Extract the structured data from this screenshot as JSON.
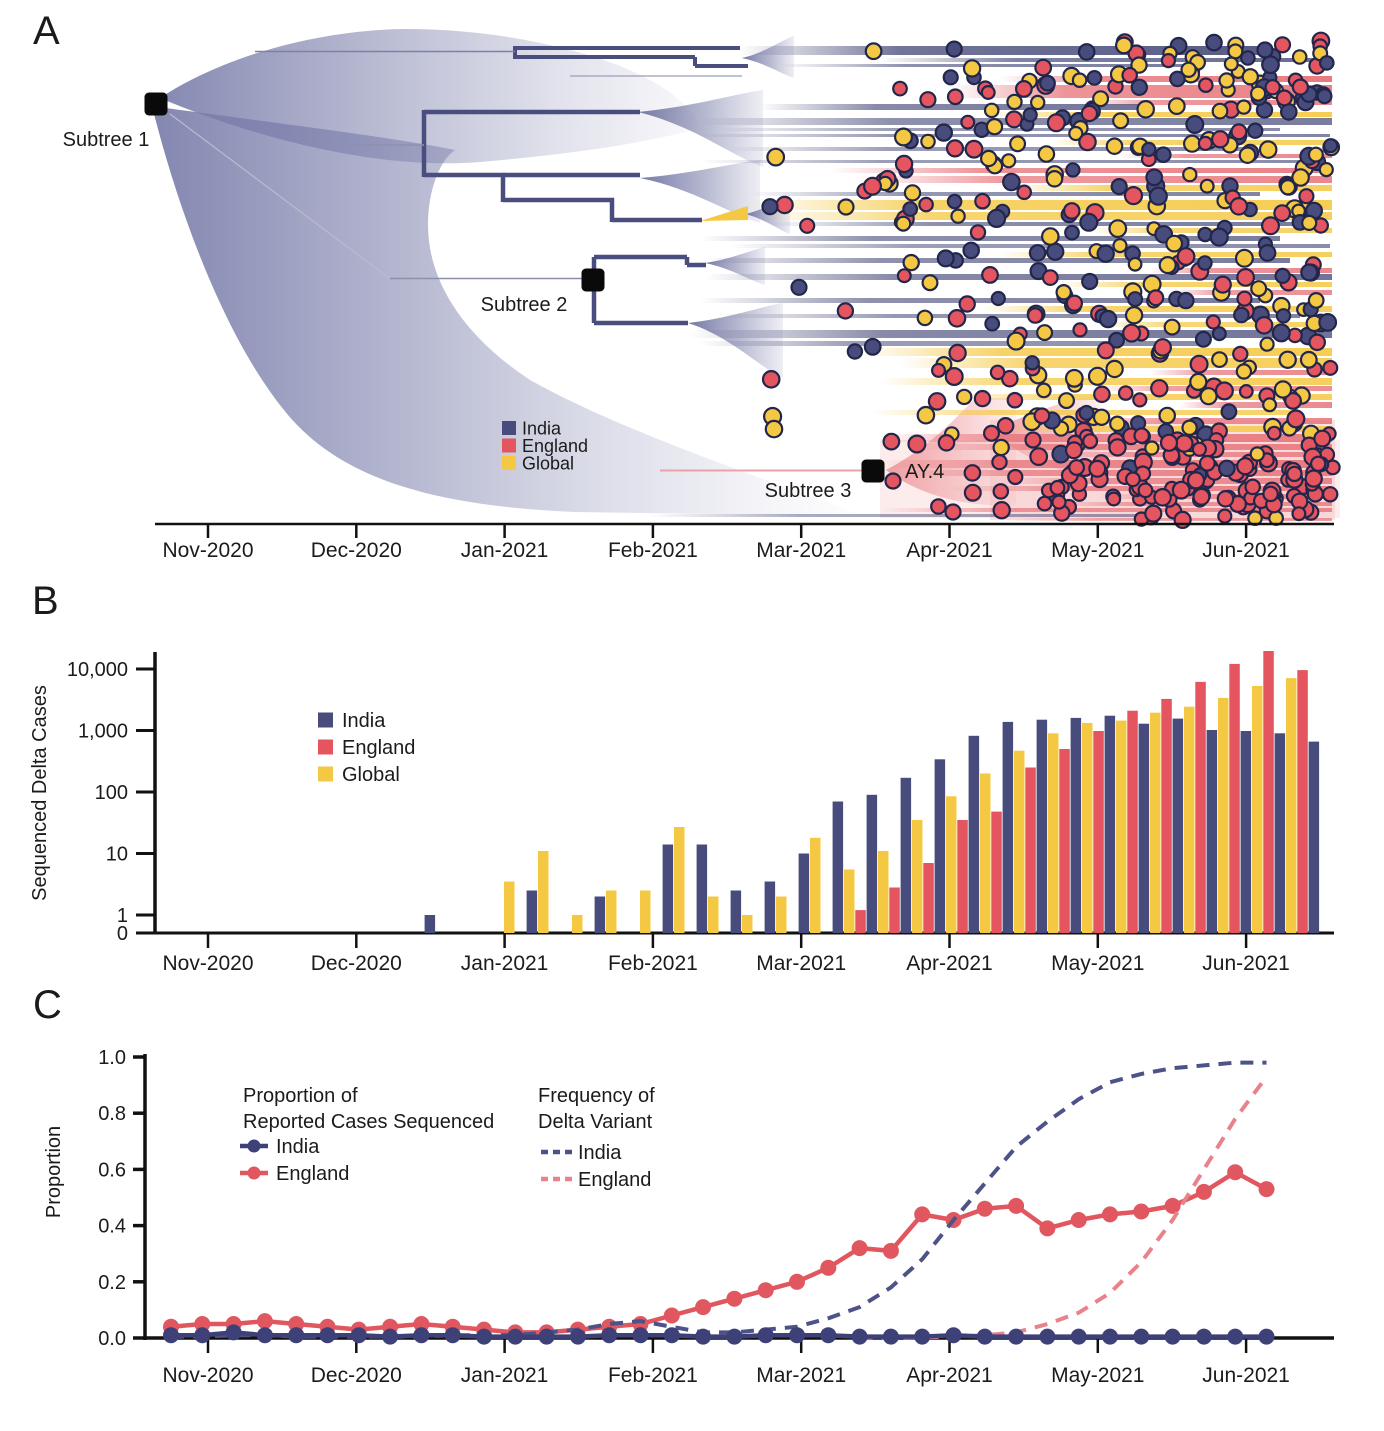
{
  "panels": {
    "a": {
      "label": "A",
      "type": "phylogenetic-tree",
      "subtree1_label": "Subtree 1",
      "subtree2_label": "Subtree 2",
      "subtree3_label": "Subtree 3",
      "clade_label": "AY.4",
      "legend": [
        {
          "label": "India",
          "color": "#484c7d"
        },
        {
          "label": "England",
          "color": "#e4555f"
        },
        {
          "label": "Global",
          "color": "#f5c843"
        }
      ],
      "x_ticks": [
        "Nov-2020",
        "Dec-2020",
        "Jan-2021",
        "Feb-2021",
        "Mar-2021",
        "Apr-2021",
        "May-2021",
        "Jun-2021"
      ]
    },
    "b": {
      "label": "B"
    },
    "c": {
      "label": "C"
    }
  },
  "chart_data": [
    {
      "panel": "B",
      "type": "bar",
      "title": "",
      "ylabel": "Sequenced Delta Cases",
      "yscale": "log",
      "x_ticks": [
        "Nov-2020",
        "Dec-2020",
        "Jan-2021",
        "Feb-2021",
        "Mar-2021",
        "Apr-2021",
        "May-2021",
        "Jun-2021"
      ],
      "y_ticks": {
        "labels": [
          "0",
          "1",
          "10",
          "100",
          "1,000",
          "10,000"
        ],
        "values": [
          0,
          1,
          10,
          100,
          1000,
          10000
        ]
      },
      "categories": "weekly bins from late Dec-2020 to late Jun-2021 (27 weeks)",
      "legend": [
        {
          "label": "India",
          "color": "#484c7d"
        },
        {
          "label": "England",
          "color": "#e4555f"
        },
        {
          "label": "Global",
          "color": "#f5c843"
        }
      ],
      "series": [
        {
          "name": "Global",
          "color": "#f5c843",
          "values": [
            0,
            0,
            0,
            3.5,
            11,
            1,
            2.5,
            2.5,
            27,
            2,
            1,
            2,
            18,
            5.5,
            11,
            35,
            85,
            200,
            470,
            900,
            1330,
            1450,
            1950,
            2440,
            3390,
            5300,
            7100
          ]
        },
        {
          "name": "England",
          "color": "#e4555f",
          "values": [
            0,
            0,
            0,
            0,
            0,
            0,
            0,
            0,
            0,
            0,
            0,
            0,
            0,
            1.2,
            2.8,
            7,
            35,
            48,
            250,
            500,
            980,
            2100,
            3260,
            6170,
            12100,
            19600,
            9600
          ]
        },
        {
          "name": "India",
          "color": "#484c7d",
          "values": [
            1,
            0,
            0,
            2.5,
            0,
            2,
            0,
            14,
            14,
            2.5,
            3.5,
            10,
            70,
            90,
            170,
            340,
            820,
            1380,
            1500,
            1600,
            1740,
            1290,
            1560,
            1020,
            980,
            900,
            660
          ]
        }
      ]
    },
    {
      "panel": "C",
      "type": "line",
      "ylabel": "Proportion",
      "ylim": [
        0,
        1
      ],
      "x_ticks": [
        "Nov-2020",
        "Dec-2020",
        "Jan-2021",
        "Feb-2021",
        "Mar-2021",
        "Apr-2021",
        "May-2021",
        "Jun-2021"
      ],
      "y_ticks": [
        "0.0",
        "0.2",
        "0.4",
        "0.6",
        "0.8",
        "1.0"
      ],
      "legend_groups": [
        {
          "title_line1": "Proportion of",
          "title_line2": "Reported Cases Sequenced",
          "entries": [
            {
              "name": "India",
              "color": "#3d4178",
              "style": "solid"
            },
            {
              "name": "England",
              "color": "#e0575f",
              "style": "solid"
            }
          ]
        },
        {
          "title_line1": "Frequency of",
          "title_line2": "Delta Variant",
          "entries": [
            {
              "name": "India",
              "color": "#4d5288",
              "style": "dashed"
            },
            {
              "name": "England",
              "color": "#e8838b",
              "style": "dashed"
            }
          ]
        }
      ],
      "series": [
        {
          "name": "England - Proportion of Reported Cases Sequenced",
          "color": "#e0575f",
          "style": "solid",
          "markers": true,
          "values": [
            0.04,
            0.05,
            0.05,
            0.06,
            0.05,
            0.04,
            0.03,
            0.04,
            0.05,
            0.04,
            0.03,
            0.02,
            0.02,
            0.03,
            0.04,
            0.05,
            0.08,
            0.11,
            0.14,
            0.17,
            0.2,
            0.25,
            0.32,
            0.31,
            0.44,
            0.42,
            0.46,
            0.47,
            0.39,
            0.42,
            0.44,
            0.45,
            0.47,
            0.52,
            0.59,
            0.53
          ]
        },
        {
          "name": "India - Proportion of Reported Cases Sequenced",
          "color": "#3d4178",
          "style": "solid",
          "markers": true,
          "values": [
            0.01,
            0.01,
            0.02,
            0.01,
            0.01,
            0.01,
            0.01,
            0.005,
            0.01,
            0.01,
            0.005,
            0.005,
            0.005,
            0.005,
            0.01,
            0.01,
            0.01,
            0.005,
            0.005,
            0.01,
            0.01,
            0.01,
            0.005,
            0.005,
            0.005,
            0.01,
            0.005,
            0.005,
            0.005,
            0.005,
            0.005,
            0.005,
            0.005,
            0.005,
            0.005,
            0.005
          ]
        },
        {
          "name": "India - Frequency of Delta Variant",
          "color": "#4d5288",
          "style": "dashed",
          "markers": false,
          "values": [
            0.005,
            0.005,
            0.01,
            0.01,
            0.005,
            0.005,
            0.005,
            0.005,
            0.005,
            0.01,
            0.01,
            0.01,
            0.02,
            0.03,
            0.05,
            0.06,
            0.04,
            0.02,
            0.02,
            0.03,
            0.04,
            0.07,
            0.11,
            0.18,
            0.28,
            0.42,
            0.55,
            0.68,
            0.77,
            0.85,
            0.91,
            0.94,
            0.96,
            0.97,
            0.98,
            0.98
          ]
        },
        {
          "name": "England - Frequency of Delta Variant",
          "color": "#e8838b",
          "style": "dashed",
          "markers": false,
          "values": [
            0,
            0,
            0,
            0,
            0,
            0,
            0,
            0,
            0,
            0,
            0,
            0,
            0,
            0,
            0,
            0,
            0,
            0,
            0,
            0,
            0,
            0,
            0.002,
            0.002,
            0.003,
            0.004,
            0.01,
            0.02,
            0.05,
            0.09,
            0.16,
            0.27,
            0.42,
            0.6,
            0.78,
            0.93
          ]
        }
      ]
    }
  ]
}
